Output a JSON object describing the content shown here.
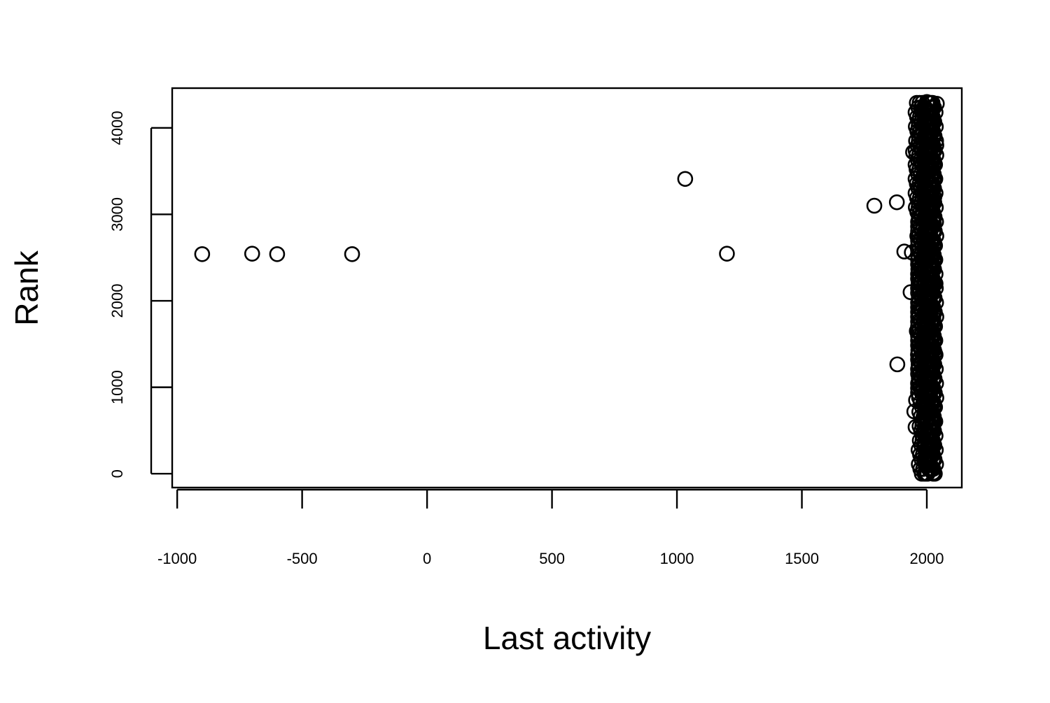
{
  "chart_data": {
    "type": "scatter",
    "title": "",
    "xlabel": "Last activity",
    "ylabel": "Rank",
    "xlim": [
      -1020,
      2140
    ],
    "ylim": [
      -160,
      4460
    ],
    "x_ticks": [
      -1000,
      -500,
      0,
      500,
      1000,
      1500,
      2000
    ],
    "y_ticks": [
      0,
      1000,
      2000,
      3000,
      4000
    ],
    "grid": false,
    "legend": "none",
    "point_style": "open-circle",
    "colors": {
      "point": "#000000",
      "background": "#ffffff"
    },
    "series": [
      {
        "points": [
          {
            "x": -900,
            "y": 2540
          },
          {
            "x": -700,
            "y": 2545
          },
          {
            "x": -600,
            "y": 2540
          },
          {
            "x": -300,
            "y": 2540
          },
          {
            "x": 1033,
            "y": 3410
          },
          {
            "x": 1200,
            "y": 2545
          },
          {
            "x": 1790,
            "y": 3100
          },
          {
            "x": 1880,
            "y": 3140
          },
          {
            "x": 1882,
            "y": 1265
          },
          {
            "x": 1910,
            "y": 2570
          },
          {
            "x": 1935,
            "y": 2100
          },
          {
            "x": 1940,
            "y": 2560
          },
          {
            "x": 1945,
            "y": 3720
          },
          {
            "x": 1950,
            "y": 720
          },
          {
            "x": 1955,
            "y": 540
          },
          {
            "x": 1957,
            "y": 850
          },
          {
            "x": 1960,
            "y": 1650
          },
          {
            "x": 1962,
            "y": 2750
          },
          {
            "x": 1965,
            "y": 1380
          },
          {
            "x": 1967,
            "y": 1860
          },
          {
            "x": 1970,
            "y": 1050
          },
          {
            "x": 1972,
            "y": 2300
          },
          {
            "x": 1975,
            "y": 3300
          },
          {
            "x": 1978,
            "y": 4200
          },
          {
            "x": 1980,
            "y": 1520
          },
          {
            "x": 1985,
            "y": 1200
          },
          {
            "x": 1990,
            "y": 300
          },
          {
            "x": 1995,
            "y": 3900
          },
          {
            "x": 2000,
            "y": 4300
          },
          {
            "x": 2005,
            "y": 2000
          },
          {
            "x": 2010,
            "y": 100
          },
          {
            "x": 2015,
            "y": 4050
          },
          {
            "x": 2018,
            "y": 2550
          },
          {
            "x": 2020,
            "y": 3550
          },
          {
            "x": 2022,
            "y": 600
          },
          {
            "x": 2024,
            "y": 900
          },
          {
            "x": 2026,
            "y": 1800
          },
          {
            "x": 2028,
            "y": 2900
          },
          {
            "x": 2030,
            "y": 3200
          },
          {
            "x": 2032,
            "y": 1400
          },
          {
            "x": 2035,
            "y": 2200
          },
          {
            "x": 2038,
            "y": 3800
          },
          {
            "x": 2040,
            "y": 4280
          },
          {
            "x": 2025,
            "y": 10
          }
        ]
      }
    ]
  }
}
